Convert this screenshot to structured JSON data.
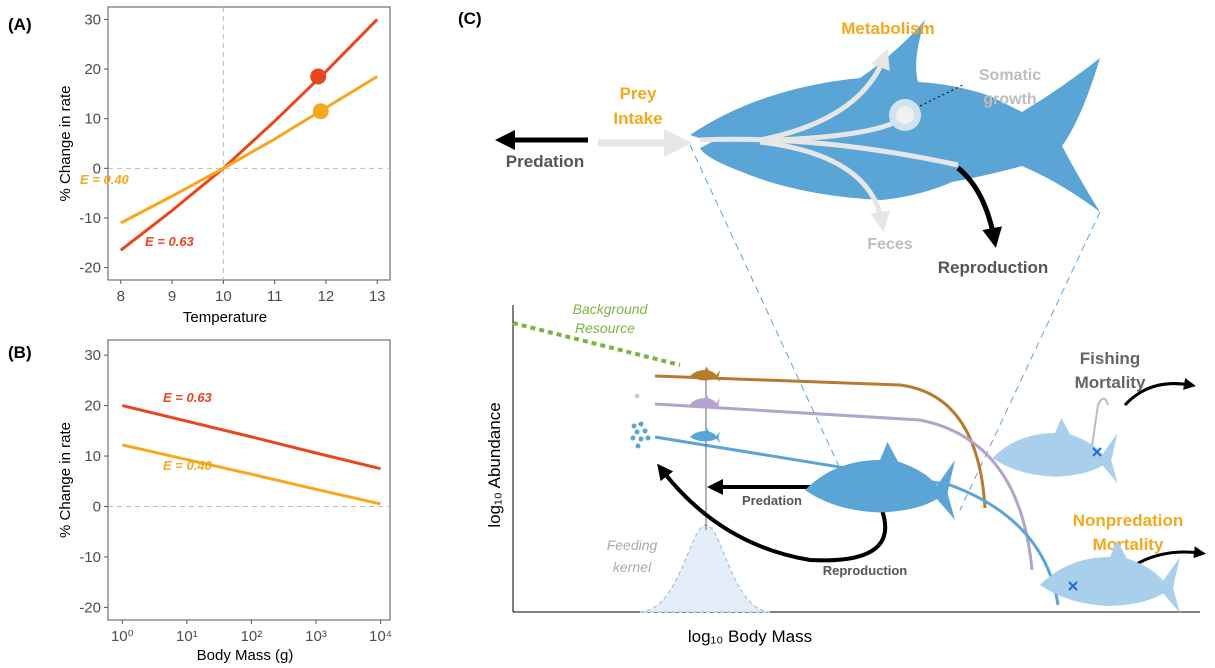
{
  "chart_data": [
    {
      "type": "line",
      "panel_label": "(A)",
      "x_label": "Temperature",
      "y_label": "% Change in rate",
      "x": [
        8,
        9,
        10,
        11,
        12,
        13
      ],
      "series": [
        {
          "name": "E = 0.63",
          "color": "#e8461e",
          "values": [
            -16.5,
            -8.5,
            0,
            9.5,
            19.5,
            30
          ],
          "points": [
            {
              "x": 11.85,
              "y": 18.5
            }
          ]
        },
        {
          "name": "E = 0.40",
          "color": "#f5a81c",
          "values": [
            -11,
            -5.6,
            0,
            5.9,
            12.2,
            18.5
          ],
          "points": [
            {
              "x": 11.9,
              "y": 11.5
            }
          ]
        }
      ],
      "xlim": [
        7.75,
        13.25
      ],
      "xticks": [
        8,
        9,
        10,
        11,
        12,
        13
      ],
      "ylim": [
        -22.5,
        32.5
      ],
      "yticks": [
        -20,
        -10,
        0,
        10,
        20,
        30
      ],
      "reference_lines": {
        "x": 10,
        "y": 0
      }
    },
    {
      "type": "line",
      "panel_label": "(B)",
      "x_label": "Body Mass (g)",
      "y_label": "% Change in rate",
      "log_x": true,
      "x": [
        1,
        10,
        100,
        1000,
        10000
      ],
      "series": [
        {
          "name": "E = 0.63",
          "color": "#e8461e",
          "values": [
            20,
            16.9,
            13.8,
            10.6,
            7.5
          ]
        },
        {
          "name": "E = 0.40",
          "color": "#f5a81c",
          "values": [
            12.2,
            9.3,
            6.4,
            3.4,
            0.5
          ]
        }
      ],
      "xlim": [
        0.6,
        14000
      ],
      "xticks": [
        {
          "value": 1,
          "label": "10⁰"
        },
        {
          "value": 10,
          "label": "10¹"
        },
        {
          "value": 100,
          "label": "10²"
        },
        {
          "value": 1000,
          "label": "10³"
        },
        {
          "value": 10000,
          "label": "10⁴"
        }
      ],
      "ylim": [
        -22.5,
        33
      ],
      "yticks": [
        -20,
        -10,
        0,
        10,
        20,
        30
      ],
      "reference_lines": {
        "y": 0
      }
    }
  ],
  "diagram": {
    "panel_label": "(C)",
    "metabolism": "Metabolism",
    "somatic_growth": [
      "Somatic",
      "growth"
    ],
    "prey_intake": [
      "Prey",
      "Intake"
    ],
    "predation": "Predation",
    "feces": "Feces",
    "reproduction": "Reproduction",
    "background_resource": [
      "Background",
      "Resource"
    ],
    "y_axis": "log₁₀ Abundance",
    "x_axis": "log₁₀ Body Mass",
    "fishing_mortality": [
      "Fishing",
      "Mortality"
    ],
    "predation_small": "Predation",
    "reproduction_small": "Reproduction",
    "nonpredation_mortality": [
      "Nonpredation",
      "Mortality"
    ],
    "feeding_kernel": [
      "Feeding",
      "kernel"
    ]
  }
}
